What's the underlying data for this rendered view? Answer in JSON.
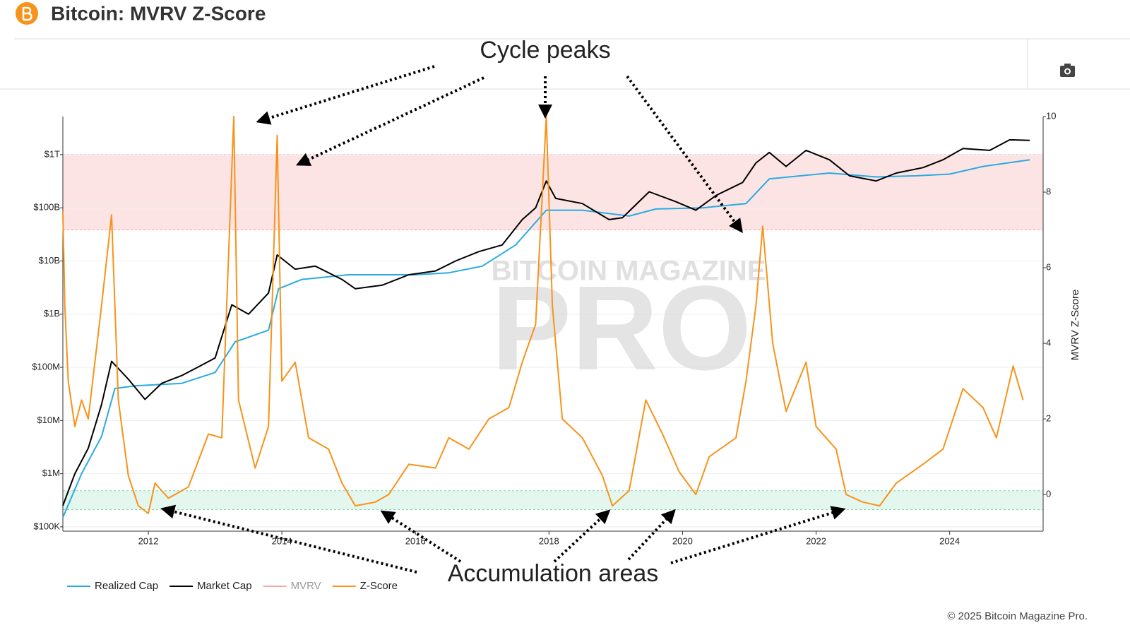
{
  "header": {
    "title": "Bitcoin: MVRV Z-Score"
  },
  "footer": "© 2025 Bitcoin Magazine Pro.",
  "chart_data": {
    "type": "line",
    "annotations": [
      "Cycle peaks",
      "Accumulation areas"
    ],
    "watermark": [
      "BITCOIN MAGAZINE",
      "PRO"
    ],
    "y2label": "MVRV Z-Score",
    "xlim": [
      2010.72,
      2025.4
    ],
    "xticks": [
      2012,
      2014,
      2016,
      2018,
      2020,
      2022,
      2024
    ],
    "log_y": true,
    "grid": true,
    "legend": "bottom-left",
    "ylim": [
      83000,
      5200000000000
    ],
    "yticks": [
      {
        "value": 100000,
        "label": "$100K"
      },
      {
        "value": 1000000,
        "label": "$1M"
      },
      {
        "value": 10000000,
        "label": "$10M"
      },
      {
        "value": 100000000,
        "label": "$100M"
      },
      {
        "value": 1000000000,
        "label": "$1B"
      },
      {
        "value": 10000000000,
        "label": "$10B"
      },
      {
        "value": 100000000000,
        "label": "$100B"
      },
      {
        "value": 1000000000000,
        "label": "$1T"
      }
    ],
    "y2lim": [
      -0.97,
      10
    ],
    "y2ticks": [
      0,
      2,
      4,
      6,
      8,
      10
    ],
    "bands": [
      {
        "axis": "y2",
        "range": [
          7,
          9
        ],
        "color": "#fde4e4"
      },
      {
        "axis": "y2",
        "range": [
          -0.4,
          0.1
        ],
        "color": "#e4f7ee"
      }
    ],
    "series": [
      {
        "name": "Realized Cap",
        "color": "#29abe2",
        "x": [
          2010.72,
          2011.0,
          2011.3,
          2011.5,
          2011.8,
          2012.5,
          2013.0,
          2013.3,
          2013.8,
          2013.95,
          2014.3,
          2015.0,
          2016.0,
          2016.5,
          2017.0,
          2017.5,
          2017.96,
          2018.5,
          2019.2,
          2019.6,
          2020.3,
          2020.95,
          2021.3,
          2022.2,
          2022.9,
          2023.5,
          2024.0,
          2024.5,
          2025.2
        ],
        "values": [
          150000,
          1000000,
          5000000,
          40000000,
          45000000,
          50000000,
          80000000,
          300000000,
          500000000,
          3000000000,
          4500000000,
          5500000000,
          5500000000,
          6000000000,
          8000000000,
          20000000000,
          90000000000,
          90000000000,
          70000000000,
          95000000000,
          100000000000,
          120000000000,
          350000000000,
          450000000000,
          380000000000,
          400000000000,
          430000000000,
          600000000000,
          800000000000
        ]
      },
      {
        "name": "Market Cap",
        "color": "#000000",
        "x": [
          2010.72,
          2010.9,
          2011.1,
          2011.3,
          2011.45,
          2011.7,
          2011.95,
          2012.2,
          2012.5,
          2012.8,
          2013.0,
          2013.25,
          2013.5,
          2013.8,
          2013.93,
          2014.2,
          2014.5,
          2014.9,
          2015.1,
          2015.5,
          2015.9,
          2016.3,
          2016.6,
          2016.95,
          2017.3,
          2017.6,
          2017.8,
          2017.96,
          2018.1,
          2018.5,
          2018.9,
          2019.1,
          2019.5,
          2019.9,
          2020.2,
          2020.5,
          2020.9,
          2021.1,
          2021.3,
          2021.55,
          2021.85,
          2022.2,
          2022.5,
          2022.9,
          2023.2,
          2023.6,
          2023.9,
          2024.2,
          2024.6,
          2024.9,
          2025.2
        ],
        "values": [
          250000,
          1000000,
          3000000,
          20000000,
          130000000,
          60000000,
          25000000,
          50000000,
          70000000,
          110000000,
          150000000,
          1500000000,
          1000000000,
          2500000000,
          13000000000,
          7000000000,
          8000000000,
          4500000000,
          3000000000,
          3500000000,
          5500000000,
          6500000000,
          10000000000,
          15000000000,
          20000000000,
          60000000000,
          100000000000,
          320000000000,
          150000000000,
          120000000000,
          60000000000,
          65000000000,
          200000000000,
          130000000000,
          90000000000,
          170000000000,
          300000000000,
          700000000000,
          1100000000000,
          600000000000,
          1200000000000,
          800000000000,
          400000000000,
          320000000000,
          450000000000,
          570000000000,
          800000000000,
          1300000000000,
          1200000000000,
          1900000000000,
          1850000000000
        ]
      },
      {
        "name": "MVRV",
        "color": "#f4a9a9",
        "visible": false
      },
      {
        "name": "Z-Score",
        "color": "#f7931a",
        "axis": "y2",
        "x": [
          2010.72,
          2010.75,
          2010.8,
          2010.9,
          2011.0,
          2011.1,
          2011.3,
          2011.45,
          2011.55,
          2011.7,
          2011.85,
          2012.0,
          2012.1,
          2012.3,
          2012.6,
          2012.9,
          2013.1,
          2013.28,
          2013.35,
          2013.6,
          2013.8,
          2013.93,
          2014.0,
          2014.2,
          2014.4,
          2014.7,
          2014.9,
          2015.1,
          2015.4,
          2015.6,
          2015.9,
          2016.3,
          2016.5,
          2016.8,
          2017.1,
          2017.4,
          2017.6,
          2017.8,
          2017.96,
          2018.05,
          2018.2,
          2018.5,
          2018.8,
          2018.95,
          2019.2,
          2019.45,
          2019.7,
          2019.95,
          2020.2,
          2020.4,
          2020.8,
          2020.95,
          2021.1,
          2021.2,
          2021.35,
          2021.55,
          2021.85,
          2022.0,
          2022.3,
          2022.45,
          2022.7,
          2022.95,
          2023.2,
          2023.6,
          2023.9,
          2024.2,
          2024.5,
          2024.7,
          2024.95,
          2025.1
        ],
        "values": [
          7.5,
          5,
          3,
          1.8,
          2.5,
          2,
          5,
          7.4,
          2.5,
          0.5,
          -0.3,
          -0.5,
          0.3,
          -0.1,
          0.2,
          1.6,
          1.5,
          10,
          2.5,
          0.7,
          1.8,
          9.5,
          3,
          3.5,
          1.5,
          1.2,
          0.3,
          -0.3,
          -0.2,
          0,
          0.8,
          0.7,
          1.5,
          1.2,
          2,
          2.3,
          3.5,
          4.5,
          10,
          5,
          2,
          1.5,
          0.5,
          -0.3,
          0.1,
          2.5,
          1.6,
          0.6,
          0,
          1,
          1.5,
          3,
          5,
          7.1,
          4,
          2.2,
          3.5,
          1.8,
          1.2,
          0,
          -0.2,
          -0.3,
          0.3,
          0.8,
          1.2,
          2.8,
          2.3,
          1.5,
          3.4,
          2.5
        ]
      }
    ]
  }
}
